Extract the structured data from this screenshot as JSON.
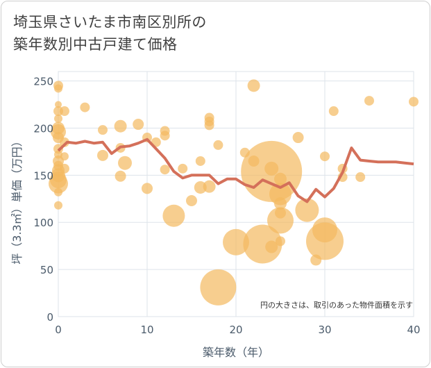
{
  "title_line1": "埼玉県さいたま市南区別所の",
  "title_line2": "築年数別中古戸建て価格",
  "note": "円の大きさは、取引のあった物件面積を示す",
  "colors": {
    "bubble": "#f3b95f",
    "line": "#d4705a",
    "grid": "#dde3ea",
    "axis": "#4a5a6a"
  },
  "chart_data": {
    "type": "scatter",
    "xlabel": "築年数（年）",
    "ylabel": "坪（3.3㎡）単価（万円）",
    "xlim": [
      0,
      40
    ],
    "ylim": [
      0,
      260
    ],
    "xticks": [
      0,
      10,
      20,
      30,
      40
    ],
    "yticks": [
      0,
      50,
      100,
      150,
      200,
      250
    ],
    "bubbles": [
      {
        "x": 0,
        "y": 245,
        "r": 7
      },
      {
        "x": 0,
        "y": 242,
        "r": 6
      },
      {
        "x": 0,
        "y": 225,
        "r": 5
      },
      {
        "x": 0,
        "y": 218,
        "r": 7
      },
      {
        "x": 0,
        "y": 210,
        "r": 6
      },
      {
        "x": 0,
        "y": 200,
        "r": 9
      },
      {
        "x": 0,
        "y": 196,
        "r": 11
      },
      {
        "x": 0,
        "y": 190,
        "r": 8
      },
      {
        "x": 0,
        "y": 178,
        "r": 7
      },
      {
        "x": 0,
        "y": 172,
        "r": 6
      },
      {
        "x": 0,
        "y": 165,
        "r": 8
      },
      {
        "x": 0,
        "y": 160,
        "r": 7
      },
      {
        "x": 0,
        "y": 155,
        "r": 9
      },
      {
        "x": 0,
        "y": 150,
        "r": 10
      },
      {
        "x": 0,
        "y": 145,
        "r": 12
      },
      {
        "x": 0,
        "y": 141,
        "r": 14
      },
      {
        "x": 0,
        "y": 132,
        "r": 6
      },
      {
        "x": 0,
        "y": 118,
        "r": 6
      },
      {
        "x": 0.7,
        "y": 218,
        "r": 7
      },
      {
        "x": 0.7,
        "y": 185,
        "r": 7
      },
      {
        "x": 0.7,
        "y": 170,
        "r": 6
      },
      {
        "x": 0.7,
        "y": 157,
        "r": 7
      },
      {
        "x": 3,
        "y": 222,
        "r": 7
      },
      {
        "x": 5,
        "y": 198,
        "r": 7
      },
      {
        "x": 5,
        "y": 171,
        "r": 8
      },
      {
        "x": 7,
        "y": 202,
        "r": 9
      },
      {
        "x": 7,
        "y": 179,
        "r": 7
      },
      {
        "x": 7,
        "y": 149,
        "r": 8
      },
      {
        "x": 7.5,
        "y": 163,
        "r": 10
      },
      {
        "x": 9,
        "y": 204,
        "r": 8
      },
      {
        "x": 10,
        "y": 190,
        "r": 7
      },
      {
        "x": 10,
        "y": 136,
        "r": 8
      },
      {
        "x": 11,
        "y": 185,
        "r": 7
      },
      {
        "x": 12,
        "y": 197,
        "r": 7
      },
      {
        "x": 12,
        "y": 192,
        "r": 7
      },
      {
        "x": 12,
        "y": 156,
        "r": 7
      },
      {
        "x": 13,
        "y": 107,
        "r": 16
      },
      {
        "x": 14,
        "y": 157,
        "r": 7
      },
      {
        "x": 15,
        "y": 123,
        "r": 8
      },
      {
        "x": 16,
        "y": 165,
        "r": 7
      },
      {
        "x": 16,
        "y": 137,
        "r": 9
      },
      {
        "x": 17,
        "y": 211,
        "r": 7
      },
      {
        "x": 17,
        "y": 207,
        "r": 7
      },
      {
        "x": 17,
        "y": 203,
        "r": 7
      },
      {
        "x": 17,
        "y": 138,
        "r": 9
      },
      {
        "x": 18,
        "y": 182,
        "r": 7
      },
      {
        "x": 18,
        "y": 31,
        "r": 26
      },
      {
        "x": 20,
        "y": 79,
        "r": 19
      },
      {
        "x": 21,
        "y": 174,
        "r": 7
      },
      {
        "x": 22,
        "y": 245,
        "r": 9
      },
      {
        "x": 22,
        "y": 165,
        "r": 8
      },
      {
        "x": 23,
        "y": 77,
        "r": 28
      },
      {
        "x": 24,
        "y": 154,
        "r": 44
      },
      {
        "x": 24,
        "y": 157,
        "r": 10
      },
      {
        "x": 24,
        "y": 74,
        "r": 9
      },
      {
        "x": 25,
        "y": 130,
        "r": 16
      },
      {
        "x": 25,
        "y": 102,
        "r": 19
      },
      {
        "x": 25,
        "y": 146,
        "r": 9
      },
      {
        "x": 25,
        "y": 120,
        "r": 9
      },
      {
        "x": 25,
        "y": 110,
        "r": 8
      },
      {
        "x": 25,
        "y": 80,
        "r": 7
      },
      {
        "x": 27,
        "y": 190,
        "r": 8
      },
      {
        "x": 28,
        "y": 113,
        "r": 17
      },
      {
        "x": 29,
        "y": 60,
        "r": 8
      },
      {
        "x": 30,
        "y": 80,
        "r": 27
      },
      {
        "x": 30,
        "y": 92,
        "r": 18
      },
      {
        "x": 30,
        "y": 170,
        "r": 7
      },
      {
        "x": 31,
        "y": 218,
        "r": 7
      },
      {
        "x": 32,
        "y": 157,
        "r": 7
      },
      {
        "x": 32,
        "y": 148,
        "r": 7
      },
      {
        "x": 34,
        "y": 148,
        "r": 7
      },
      {
        "x": 35,
        "y": 229,
        "r": 7
      },
      {
        "x": 40,
        "y": 228,
        "r": 7
      }
    ],
    "trend": {
      "x": [
        0,
        1,
        2,
        3,
        4,
        5,
        6,
        7,
        8,
        9,
        10,
        11,
        12,
        13,
        14,
        15,
        16,
        17,
        18,
        19,
        20,
        21,
        22,
        23,
        24,
        25,
        26,
        27,
        28,
        29,
        30,
        31,
        32,
        33,
        34,
        35,
        36,
        37,
        38,
        39,
        40
      ],
      "y": [
        176,
        185,
        184,
        186,
        184,
        185,
        173,
        180,
        181,
        184,
        188,
        178,
        168,
        154,
        147,
        150,
        150,
        150,
        141,
        146,
        146,
        140,
        137,
        145,
        141,
        137,
        142,
        128,
        122,
        135,
        127,
        136,
        153,
        179,
        166,
        165,
        164,
        164,
        164,
        163,
        162
      ]
    }
  }
}
